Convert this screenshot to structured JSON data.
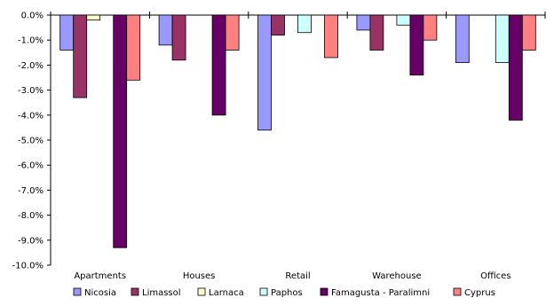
{
  "chart_data": {
    "type": "bar",
    "categories": [
      "Apartments",
      "Houses",
      "Retail",
      "Warehouse",
      "Offices"
    ],
    "series": [
      {
        "name": "Nicosia",
        "color": "#9999FF",
        "values": [
          -1.4,
          -1.2,
          -4.6,
          -0.6,
          -1.9
        ]
      },
      {
        "name": "Limassol",
        "color": "#993366",
        "values": [
          -3.3,
          -1.8,
          -0.8,
          -1.4,
          0.0
        ]
      },
      {
        "name": "Larnaca",
        "color": "#FFFFCC",
        "values": [
          -0.2,
          0.0,
          0.0,
          0.0,
          0.0
        ]
      },
      {
        "name": "Paphos",
        "color": "#CCFFFF",
        "values": [
          0.0,
          0.0,
          -0.7,
          -0.4,
          -1.9
        ]
      },
      {
        "name": "Famagusta - Paralimni",
        "color": "#660066",
        "values": [
          -9.3,
          -4.0,
          0.0,
          -2.4,
          -4.2
        ]
      },
      {
        "name": "Cyprus",
        "color": "#FF8080",
        "values": [
          -2.6,
          -1.4,
          -1.7,
          -1.0,
          -1.4
        ]
      }
    ],
    "y_ticks": [
      "0.0%",
      "-1.0%",
      "-2.0%",
      "-3.0%",
      "-4.0%",
      "-5.0%",
      "-6.0%",
      "-7.0%",
      "-8.0%",
      "-9.0%",
      "-10.0%"
    ],
    "ylim": [
      -10,
      0
    ],
    "grid": false,
    "legend_position": "bottom"
  }
}
